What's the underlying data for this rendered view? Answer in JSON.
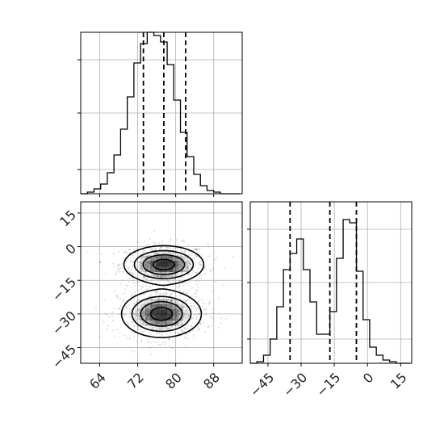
{
  "figure": {
    "type": "corner-plot",
    "background": "#ffffff",
    "line_color": "#000000",
    "grid_color": "#b0b0b0"
  },
  "chart_data": [
    {
      "type": "bar",
      "panel": "top-histogram",
      "histtype": "step",
      "xlim": [
        60,
        94
      ],
      "ylim": [
        0,
        1.0
      ],
      "bin_edges": [
        60,
        61.4,
        62.8,
        64.2,
        65.6,
        67,
        68.4,
        69.8,
        71.2,
        72.6,
        74,
        75.4,
        76.8,
        78.2,
        79.6,
        81,
        82.4,
        83.8,
        85.2,
        86.6,
        88,
        89.4,
        90.8,
        92.2,
        93.6
      ],
      "counts": [
        0.0,
        0.01,
        0.03,
        0.06,
        0.13,
        0.24,
        0.4,
        0.6,
        0.81,
        0.93,
        1.0,
        0.98,
        0.94,
        0.8,
        0.58,
        0.38,
        0.23,
        0.12,
        0.05,
        0.02,
        0.01,
        0.0,
        0.0,
        0.0
      ],
      "quantiles": [
        73.2,
        77.5,
        82.1
      ],
      "xticks": [
        64,
        72,
        80,
        88
      ],
      "grid": true
    },
    {
      "type": "scatter",
      "panel": "2d-density",
      "xlim": [
        60,
        94
      ],
      "ylim": [
        -52,
        20
      ],
      "x_ticks": [
        64,
        72,
        80,
        88
      ],
      "y_ticks": [
        15,
        0,
        -15,
        -30,
        -45
      ],
      "clusters": [
        {
          "center": [
            77.5,
            -8
          ],
          "sd": [
            4.0,
            4.0
          ],
          "weight": 0.5
        },
        {
          "center": [
            77.0,
            -30
          ],
          "sd": [
            4.0,
            5.0
          ],
          "weight": 0.5
        }
      ],
      "grid": true,
      "contours": true
    },
    {
      "type": "bar",
      "panel": "right-histogram",
      "histtype": "step",
      "xlim": [
        -53,
        20
      ],
      "ylim": [
        0,
        1.0
      ],
      "bin_edges": [
        -53,
        -50,
        -47,
        -44,
        -41,
        -38,
        -35,
        -32,
        -29,
        -26,
        -23,
        -20,
        -17,
        -14,
        -11,
        -8,
        -5,
        -2,
        1,
        4,
        7,
        10,
        13,
        16,
        19
      ],
      "counts": [
        0.0,
        0.01,
        0.05,
        0.15,
        0.35,
        0.58,
        0.68,
        0.77,
        0.58,
        0.38,
        0.18,
        0.18,
        0.32,
        0.65,
        0.89,
        0.87,
        0.57,
        0.27,
        0.1,
        0.05,
        0.02,
        0.01,
        0.0,
        0.0
      ],
      "quantiles": [
        -35,
        -17,
        -5
      ],
      "xticks": [
        -45,
        -30,
        -15,
        0,
        15
      ],
      "grid": true
    }
  ]
}
